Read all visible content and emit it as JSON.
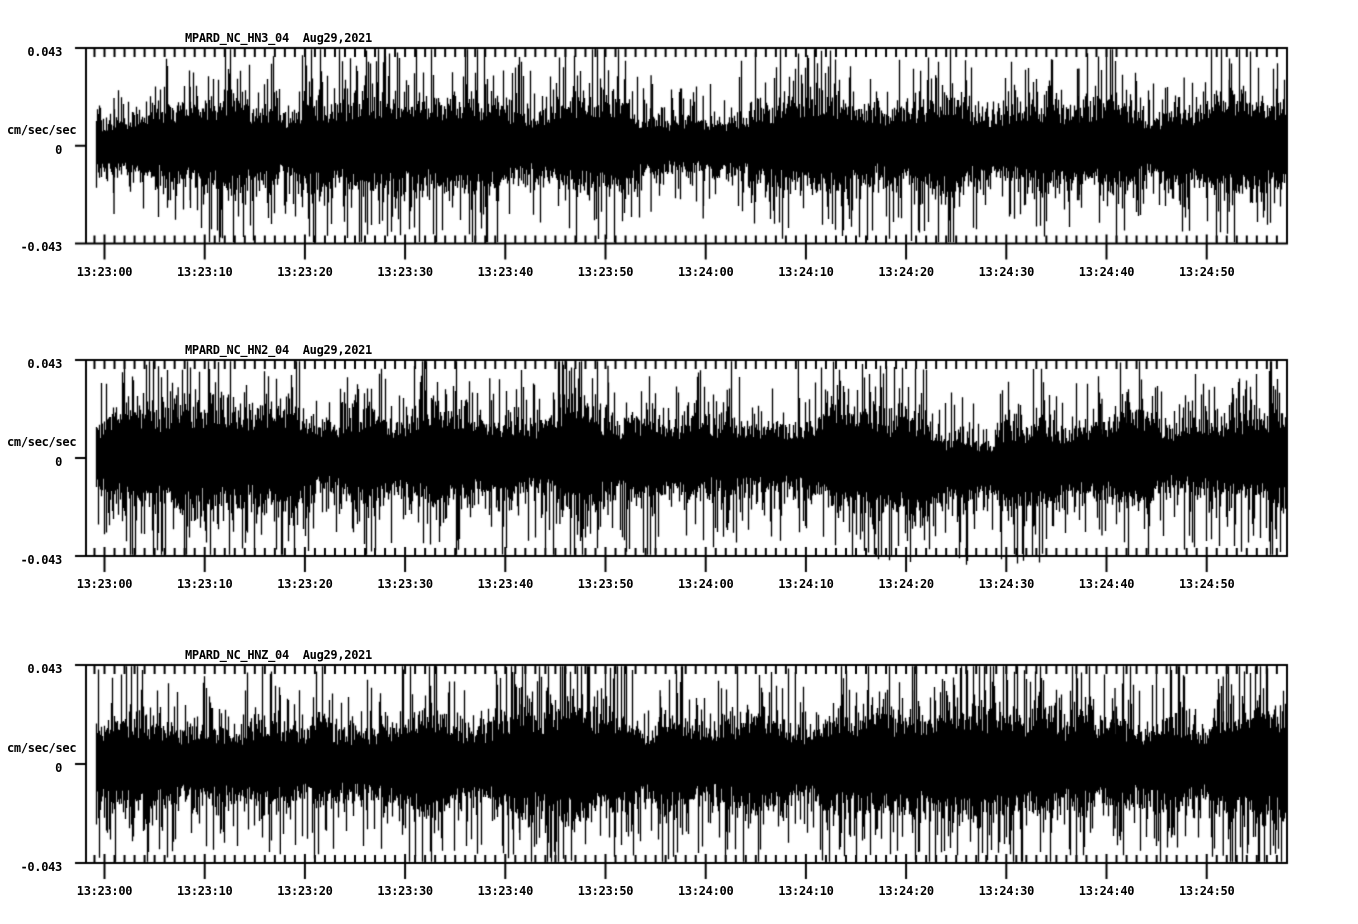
{
  "page": {
    "background": "#ffffff",
    "ink": "#000000"
  },
  "chart_data": [
    {
      "type": "line",
      "subtype": "seismogram-trace",
      "station": "MPARD_NC_HN3_04",
      "date": "Aug29,2021",
      "title": "MPARD_NC_HN3_04  Aug29,2021",
      "ylabel": "cm/sec/sec",
      "ylim": [
        -0.043,
        0.043
      ],
      "ytick_values": [
        0.043,
        0,
        -0.043
      ],
      "ytick_labels": [
        "0.043",
        "0",
        "-0.043"
      ],
      "x_window": [
        "13:22:58",
        "13:24:58"
      ],
      "xtick_interval_s": 10,
      "minor_tick_interval_s": 1,
      "x_tick_labels": [
        "13:23:00",
        "13:23:10",
        "13:23:20",
        "13:23:30",
        "13:23:40",
        "13:23:50",
        "13:24:00",
        "13:24:10",
        "13:24:20",
        "13:24:30",
        "13:24:40",
        "13:24:50"
      ],
      "band_amplitude": 0.0133,
      "envelope": [
        0.78,
        0.88,
        0.96,
        1.0,
        0.98,
        0.95,
        1.0,
        1.04,
        1.0,
        0.97,
        0.95,
        1.02,
        1.08,
        1.02,
        0.96,
        1.0,
        0.96,
        0.92,
        1.0,
        1.05,
        1.08,
        1.0,
        0.95,
        0.92,
        0.88,
        0.92,
        0.96,
        1.0,
        0.96,
        1.0,
        1.02,
        0.96,
        1.04,
        1.12,
        1.08,
        1.0,
        0.96,
        1.0,
        1.02,
        1.06,
        1.1,
        1.02,
        0.95,
        0.92,
        0.96,
        1.05,
        1.04,
        1.0
      ],
      "offset": [
        0,
        0,
        0,
        0,
        0,
        0,
        0,
        0,
        0,
        0,
        0,
        0,
        0,
        0,
        0,
        0,
        0,
        0,
        0,
        0,
        0,
        0,
        0,
        0,
        0,
        0,
        0,
        0,
        0,
        0,
        0,
        0,
        0,
        0,
        0,
        0,
        0,
        0,
        0,
        0,
        0,
        0,
        0,
        0,
        0,
        0,
        0,
        0
      ],
      "spikes": [
        {
          "t": 0.9,
          "up": 0.021,
          "down": 0.03
        },
        {
          "t": 8.5,
          "up": 0.026,
          "down": 0.024
        },
        {
          "t": 24.0,
          "up": 0.029,
          "down": 0.022
        },
        {
          "t": 38.0,
          "up": 0.027,
          "down": 0.025
        },
        {
          "t": 54.5,
          "up": 0.031,
          "down": 0.029
        },
        {
          "t": 59.7,
          "up": 0.022,
          "down": 0.032
        },
        {
          "t": 81.4,
          "up": 0.033,
          "down": 0.026
        },
        {
          "t": 82.9,
          "up": 0.031,
          "down": 0.022
        },
        {
          "t": 97.2,
          "up": 0.034,
          "down": 0.024
        },
        {
          "t": 107.7,
          "up": 0.03,
          "down": 0.027
        },
        {
          "t": 112.2,
          "up": 0.029,
          "down": 0.029
        }
      ]
    },
    {
      "type": "line",
      "subtype": "seismogram-trace",
      "station": "MPARD_NC_HN2_04",
      "date": "Aug29,2021",
      "title": "MPARD_NC_HN2_04  Aug29,2021",
      "ylabel": "cm/sec/sec",
      "ylim": [
        -0.043,
        0.043
      ],
      "ytick_values": [
        0.043,
        0,
        -0.043
      ],
      "ytick_labels": [
        "0.043",
        "0",
        "-0.043"
      ],
      "x_window": [
        "13:22:58",
        "13:24:58"
      ],
      "xtick_interval_s": 10,
      "minor_tick_interval_s": 1,
      "x_tick_labels": [
        "13:23:00",
        "13:23:10",
        "13:23:20",
        "13:23:30",
        "13:23:40",
        "13:23:50",
        "13:24:00",
        "13:24:10",
        "13:24:20",
        "13:24:30",
        "13:24:40",
        "13:24:50"
      ],
      "band_amplitude": 0.0145,
      "envelope": [
        0.82,
        0.92,
        1.0,
        1.02,
        1.05,
        1.0,
        0.96,
        1.0,
        1.05,
        1.02,
        1.0,
        1.05,
        1.0,
        1.05,
        1.02,
        1.06,
        1.1,
        1.05,
        1.0,
        1.05,
        1.08,
        1.05,
        1.04,
        1.0,
        1.05,
        1.0,
        1.05,
        1.02,
        1.0,
        0.96,
        1.0,
        1.0,
        0.96,
        0.92,
        0.88,
        0.88,
        0.92,
        0.9,
        0.92,
        0.96,
        0.92,
        0.96,
        1.0,
        0.96,
        0.96,
        1.0,
        1.0,
        0.96
      ],
      "offset": [
        0,
        0,
        0,
        0,
        0,
        0,
        0,
        0,
        0,
        0,
        0,
        0,
        0,
        0,
        0,
        0,
        0,
        0,
        0,
        0,
        0,
        0,
        0,
        0,
        0,
        0,
        0,
        0,
        0,
        0,
        -0.001,
        -0.002,
        -0.003,
        -0.004,
        -0.0045,
        -0.004,
        -0.004,
        -0.0035,
        -0.003,
        -0.002,
        -0.001,
        0,
        0,
        0,
        0,
        0,
        0,
        0
      ],
      "spikes": [
        {
          "t": 7.3,
          "up": 0.031,
          "down": 0.02
        },
        {
          "t": 18.7,
          "up": 0.029,
          "down": 0.024
        },
        {
          "t": 38.4,
          "up": 0.035,
          "down": 0.022
        },
        {
          "t": 45.4,
          "up": 0.028,
          "down": 0.029
        },
        {
          "t": 50.2,
          "up": 0.0405,
          "down": 0.025
        },
        {
          "t": 62.1,
          "up": 0.03,
          "down": 0.028
        },
        {
          "t": 69.2,
          "up": 0.0428,
          "down": 0.022
        },
        {
          "t": 73.1,
          "up": 0.032,
          "down": 0.024
        },
        {
          "t": 76.4,
          "up": 0.029,
          "down": 0.026
        },
        {
          "t": 99.5,
          "up": 0.026,
          "down": 0.034
        },
        {
          "t": 102.0,
          "up": 0.029,
          "down": 0.022
        },
        {
          "t": 110.2,
          "up": 0.03,
          "down": 0.024
        }
      ]
    },
    {
      "type": "line",
      "subtype": "seismogram-trace",
      "station": "MPARD_NC_HNZ_04",
      "date": "Aug29,2021",
      "title": "MPARD_NC_HNZ_04  Aug29,2021",
      "ylabel": "cm/sec/sec",
      "ylim": [
        -0.043,
        0.043
      ],
      "ytick_values": [
        0.043,
        0,
        -0.043
      ],
      "ytick_labels": [
        "0.043",
        "0",
        "-0.043"
      ],
      "x_window": [
        "13:22:58",
        "13:24:58"
      ],
      "xtick_interval_s": 10,
      "minor_tick_interval_s": 1,
      "x_tick_labels": [
        "13:23:00",
        "13:23:10",
        "13:23:20",
        "13:23:30",
        "13:23:40",
        "13:23:50",
        "13:24:00",
        "13:24:10",
        "13:24:20",
        "13:24:30",
        "13:24:40",
        "13:24:50"
      ],
      "band_amplitude": 0.0155,
      "envelope": [
        0.92,
        1.0,
        1.02,
        1.05,
        1.0,
        1.04,
        1.0,
        1.0,
        1.05,
        1.0,
        0.96,
        1.0,
        1.0,
        1.04,
        1.0,
        1.0,
        1.05,
        1.0,
        1.04,
        1.0,
        1.0,
        1.04,
        1.0,
        1.0,
        0.96,
        1.0,
        1.04,
        1.0,
        1.0,
        1.04,
        1.0,
        1.0,
        0.96,
        1.0,
        1.0,
        1.04,
        1.0,
        0.96,
        1.0,
        1.0,
        0.96,
        1.0,
        1.04,
        1.0,
        1.0,
        1.04,
        1.0,
        0.96
      ],
      "offset": [
        0,
        0,
        0,
        0,
        0,
        0,
        0,
        0,
        0,
        0,
        0,
        0,
        0,
        0,
        0,
        0,
        0,
        0,
        0,
        0,
        0,
        0,
        0,
        0,
        0,
        0,
        0,
        0,
        0,
        0,
        0,
        0,
        0,
        0,
        0,
        0,
        0,
        0,
        0,
        0,
        0,
        0,
        0,
        0,
        0,
        0,
        0,
        0
      ],
      "spikes": [
        {
          "t": 17.5,
          "up": 0.03,
          "down": 0.0392
        },
        {
          "t": 32.5,
          "up": 0.034,
          "down": 0.025
        },
        {
          "t": 41.4,
          "up": 0.026,
          "down": 0.033
        },
        {
          "t": 55.4,
          "up": 0.032,
          "down": 0.026
        },
        {
          "t": 68.9,
          "up": 0.0398,
          "down": 0.026
        },
        {
          "t": 80.6,
          "up": 0.032,
          "down": 0.03
        },
        {
          "t": 89.3,
          "up": 0.027,
          "down": 0.034
        },
        {
          "t": 100.8,
          "up": 0.033,
          "down": 0.028
        },
        {
          "t": 111.6,
          "up": 0.038,
          "down": 0.0398
        }
      ]
    }
  ]
}
